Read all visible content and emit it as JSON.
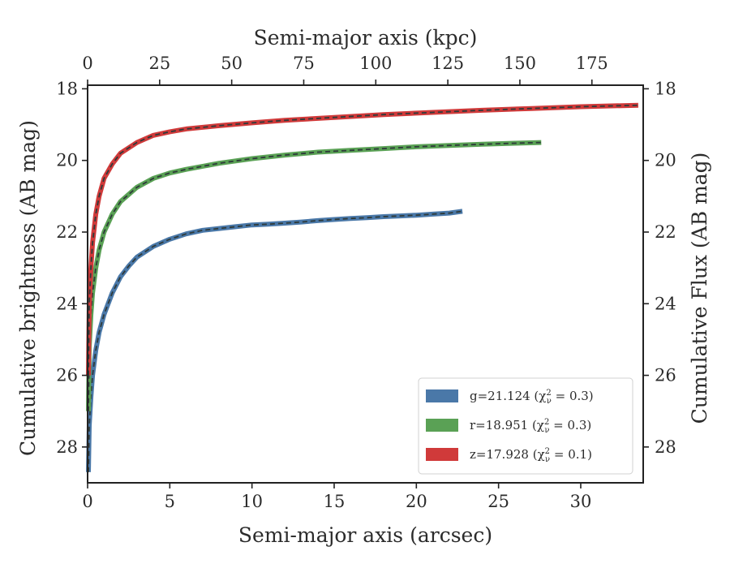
{
  "chart_data": {
    "type": "line",
    "xlabel": "Semi-major axis (arcsec)",
    "ylabel": "Cumulative brightness (AB mag)",
    "top_xlabel": "Semi-major axis (kpc)",
    "right_ylabel": "Cumulative Flux (AB mag)",
    "xlim": [
      0,
      33.8
    ],
    "ylim": [
      29.0,
      17.9
    ],
    "y_inverted": true,
    "top_xlim": [
      0,
      192.8
    ],
    "x_ticks": [
      "0",
      "5",
      "10",
      "15",
      "20",
      "25",
      "30"
    ],
    "top_x_ticks": [
      "0",
      "25",
      "50",
      "75",
      "100",
      "125",
      "150",
      "175"
    ],
    "y_ticks": [
      "18",
      "20",
      "22",
      "24",
      "26",
      "28"
    ],
    "legend_position": "lower-right",
    "grid": false,
    "series": [
      {
        "key": "g",
        "legend": {
          "main": "g=21.124 (χ",
          "sup": "2",
          "sub": "ν",
          "tail": " = 0.3)"
        },
        "color": "#4a78a8",
        "x": [
          0.05,
          0.1,
          0.2,
          0.3,
          0.5,
          0.7,
          1.0,
          1.5,
          2.0,
          2.5,
          3.0,
          4.0,
          5.0,
          6.0,
          7.0,
          8.0,
          9.0,
          10.0,
          11.0,
          12.0,
          13.0,
          14.0,
          15.0,
          16.0,
          17.0,
          18.0,
          19.0,
          20.0,
          21.0,
          22.0,
          22.8
        ],
        "y": [
          28.7,
          27.4,
          26.6,
          26.0,
          25.3,
          24.8,
          24.3,
          23.7,
          23.25,
          22.95,
          22.7,
          22.4,
          22.2,
          22.05,
          21.95,
          21.9,
          21.85,
          21.8,
          21.78,
          21.75,
          21.72,
          21.68,
          21.65,
          21.62,
          21.6,
          21.57,
          21.55,
          21.53,
          21.5,
          21.47,
          21.42
        ]
      },
      {
        "key": "r",
        "legend": {
          "main": "r=18.951 (χ",
          "sup": "2",
          "sub": "ν",
          "tail": " = 0.3)"
        },
        "color": "#5aa155",
        "x": [
          0.05,
          0.1,
          0.2,
          0.3,
          0.5,
          0.7,
          1.0,
          1.5,
          2.0,
          3.0,
          4.0,
          5.0,
          6.0,
          8.0,
          10.0,
          12.0,
          14.0,
          16.0,
          18.0,
          20.0,
          22.0,
          24.0,
          26.0,
          27.6
        ],
        "y": [
          27.0,
          25.2,
          24.3,
          23.7,
          23.0,
          22.5,
          22.0,
          21.5,
          21.15,
          20.75,
          20.5,
          20.35,
          20.25,
          20.08,
          19.95,
          19.85,
          19.77,
          19.72,
          19.67,
          19.62,
          19.58,
          19.55,
          19.52,
          19.5
        ]
      },
      {
        "key": "z",
        "legend": {
          "main": "z=17.928 (χ",
          "sup": "2",
          "sub": "ν",
          "tail": " = 0.1)"
        },
        "color": "#d03a3a",
        "x": [
          0.05,
          0.1,
          0.2,
          0.3,
          0.5,
          0.7,
          1.0,
          1.5,
          2.0,
          3.0,
          4.0,
          5.0,
          6.0,
          8.0,
          10.0,
          12.0,
          15.0,
          18.0,
          21.0,
          24.0,
          27.0,
          30.0,
          33.5
        ],
        "y": [
          26.0,
          24.0,
          23.0,
          22.3,
          21.5,
          21.0,
          20.5,
          20.1,
          19.8,
          19.5,
          19.3,
          19.2,
          19.12,
          19.03,
          18.95,
          18.88,
          18.8,
          18.72,
          18.66,
          18.6,
          18.55,
          18.5,
          18.46
        ]
      }
    ]
  }
}
